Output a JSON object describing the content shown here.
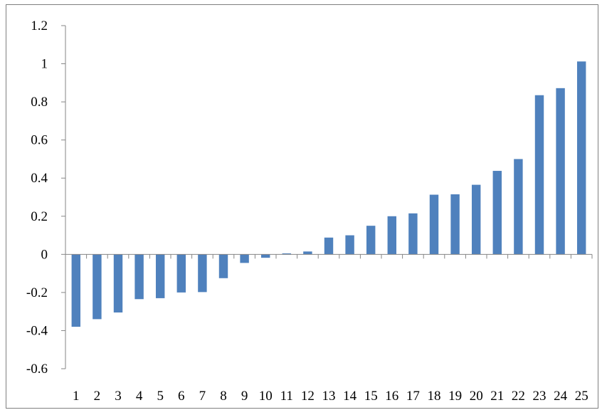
{
  "chart_data": {
    "type": "bar",
    "title": "",
    "xlabel": "",
    "ylabel": "",
    "categories": [
      "1",
      "2",
      "3",
      "4",
      "5",
      "6",
      "7",
      "8",
      "9",
      "10",
      "11",
      "12",
      "13",
      "14",
      "15",
      "16",
      "17",
      "18",
      "19",
      "20",
      "21",
      "22",
      "23",
      "24",
      "25"
    ],
    "series": [
      {
        "values": [
          -0.38,
          -0.34,
          -0.305,
          -0.235,
          -0.23,
          -0.2,
          -0.198,
          -0.125,
          -0.045,
          -0.018,
          0.005,
          0.015,
          0.088,
          0.1,
          0.15,
          0.2,
          0.215,
          0.313,
          0.315,
          0.365,
          0.438,
          0.5,
          0.835,
          0.872,
          1.012
        ],
        "color": "#4f81bd"
      }
    ],
    "ylim": [
      -0.6,
      1.2
    ],
    "yticks": [
      "-0.6",
      "-0.4",
      "-0.2",
      "0",
      "0.2",
      "0.4",
      "0.6",
      "0.8",
      "1",
      "1.2"
    ],
    "grid": false,
    "legend": "none"
  }
}
